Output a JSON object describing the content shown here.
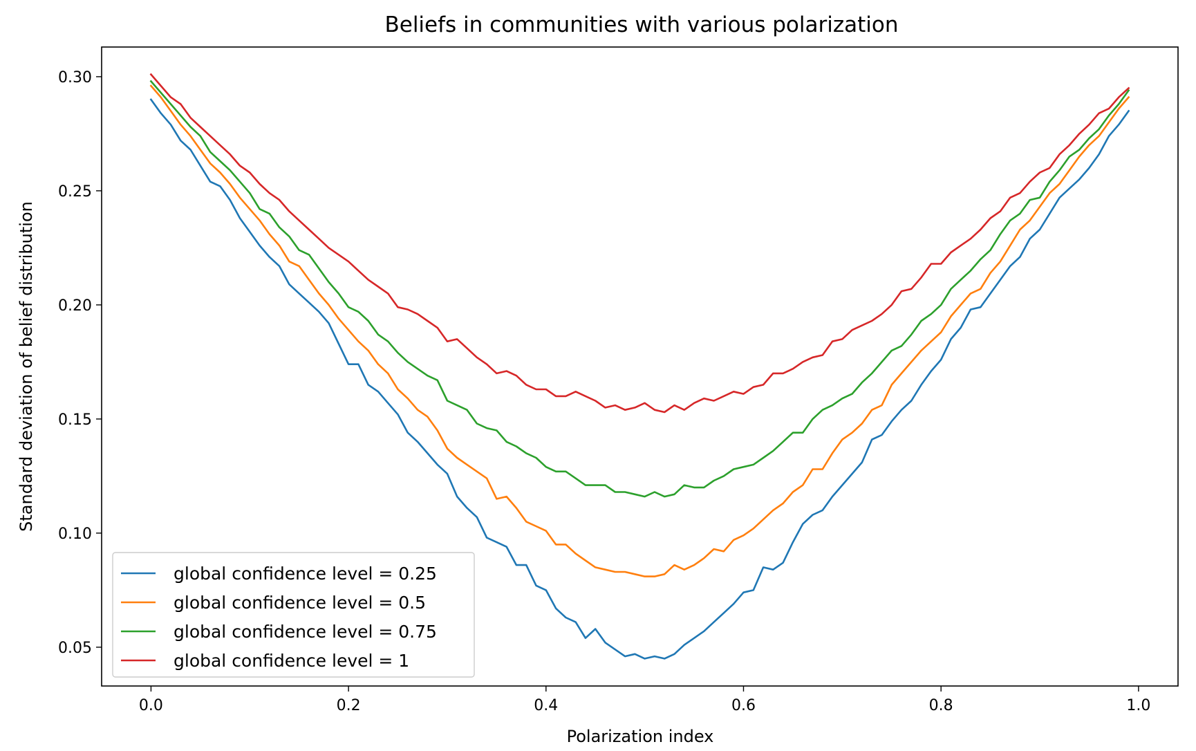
{
  "chart_data": {
    "type": "line",
    "title": "Beliefs in communities with various polarization",
    "xlabel": "Polarization index",
    "ylabel": "Standard deviation of belief distribution",
    "xlim": [
      -0.05,
      1.04
    ],
    "ylim": [
      0.033,
      0.313
    ],
    "xticks": [
      0.0,
      0.2,
      0.4,
      0.6,
      0.8,
      1.0
    ],
    "xtick_labels": [
      "0.0",
      "0.2",
      "0.4",
      "0.6",
      "0.8",
      "1.0"
    ],
    "yticks": [
      0.05,
      0.1,
      0.15,
      0.2,
      0.25,
      0.3
    ],
    "ytick_labels": [
      "0.05",
      "0.10",
      "0.15",
      "0.20",
      "0.25",
      "0.30"
    ],
    "legend_position": "lower-left",
    "x_start": 0.0,
    "x_step": 0.01,
    "series": [
      {
        "name": "global confidence level = 0.25",
        "color": "#1f77b4",
        "values": [
          0.29,
          0.284,
          0.279,
          0.272,
          0.268,
          0.261,
          0.254,
          0.252,
          0.246,
          0.238,
          0.232,
          0.226,
          0.221,
          0.217,
          0.209,
          0.205,
          0.201,
          0.197,
          0.192,
          0.183,
          0.174,
          0.174,
          0.165,
          0.162,
          0.157,
          0.152,
          0.144,
          0.14,
          0.135,
          0.13,
          0.126,
          0.116,
          0.111,
          0.107,
          0.098,
          0.096,
          0.094,
          0.086,
          0.086,
          0.077,
          0.075,
          0.067,
          0.063,
          0.061,
          0.054,
          0.058,
          0.052,
          0.049,
          0.046,
          0.047,
          0.045,
          0.046,
          0.045,
          0.047,
          0.051,
          0.054,
          0.057,
          0.061,
          0.065,
          0.069,
          0.074,
          0.075,
          0.085,
          0.084,
          0.087,
          0.096,
          0.104,
          0.108,
          0.11,
          0.116,
          0.121,
          0.126,
          0.131,
          0.141,
          0.143,
          0.149,
          0.154,
          0.158,
          0.165,
          0.171,
          0.176,
          0.185,
          0.19,
          0.198,
          0.199,
          0.205,
          0.211,
          0.217,
          0.221,
          0.229,
          0.233,
          0.24,
          0.247,
          0.251,
          0.255,
          0.26,
          0.266,
          0.274,
          0.279,
          0.285
        ]
      },
      {
        "name": "global confidence level = 0.5",
        "color": "#ff7f0e",
        "values": [
          0.296,
          0.291,
          0.285,
          0.279,
          0.274,
          0.268,
          0.262,
          0.258,
          0.253,
          0.247,
          0.242,
          0.237,
          0.231,
          0.226,
          0.219,
          0.217,
          0.211,
          0.205,
          0.2,
          0.194,
          0.189,
          0.184,
          0.18,
          0.174,
          0.17,
          0.163,
          0.159,
          0.154,
          0.151,
          0.145,
          0.137,
          0.133,
          0.13,
          0.127,
          0.124,
          0.115,
          0.116,
          0.111,
          0.105,
          0.103,
          0.101,
          0.095,
          0.095,
          0.091,
          0.088,
          0.085,
          0.084,
          0.083,
          0.083,
          0.082,
          0.081,
          0.081,
          0.082,
          0.086,
          0.084,
          0.086,
          0.089,
          0.093,
          0.092,
          0.097,
          0.099,
          0.102,
          0.106,
          0.11,
          0.113,
          0.118,
          0.121,
          0.128,
          0.128,
          0.135,
          0.141,
          0.144,
          0.148,
          0.154,
          0.156,
          0.165,
          0.17,
          0.175,
          0.18,
          0.184,
          0.188,
          0.195,
          0.2,
          0.205,
          0.207,
          0.214,
          0.219,
          0.226,
          0.233,
          0.237,
          0.243,
          0.249,
          0.253,
          0.259,
          0.265,
          0.27,
          0.274,
          0.28,
          0.286,
          0.291
        ]
      },
      {
        "name": "global confidence level = 0.75",
        "color": "#2ca02c",
        "values": [
          0.298,
          0.293,
          0.288,
          0.283,
          0.278,
          0.274,
          0.267,
          0.263,
          0.259,
          0.254,
          0.249,
          0.242,
          0.24,
          0.234,
          0.23,
          0.224,
          0.222,
          0.216,
          0.21,
          0.205,
          0.199,
          0.197,
          0.193,
          0.187,
          0.184,
          0.179,
          0.175,
          0.172,
          0.169,
          0.167,
          0.158,
          0.156,
          0.154,
          0.148,
          0.146,
          0.145,
          0.14,
          0.138,
          0.135,
          0.133,
          0.129,
          0.127,
          0.127,
          0.124,
          0.121,
          0.121,
          0.121,
          0.118,
          0.118,
          0.117,
          0.116,
          0.118,
          0.116,
          0.117,
          0.121,
          0.12,
          0.12,
          0.123,
          0.125,
          0.128,
          0.129,
          0.13,
          0.133,
          0.136,
          0.14,
          0.144,
          0.144,
          0.15,
          0.154,
          0.156,
          0.159,
          0.161,
          0.166,
          0.17,
          0.175,
          0.18,
          0.182,
          0.187,
          0.193,
          0.196,
          0.2,
          0.207,
          0.211,
          0.215,
          0.22,
          0.224,
          0.231,
          0.237,
          0.24,
          0.246,
          0.247,
          0.254,
          0.259,
          0.265,
          0.268,
          0.273,
          0.277,
          0.283,
          0.288,
          0.294
        ]
      },
      {
        "name": "global confidence level = 1",
        "color": "#d62728",
        "values": [
          0.301,
          0.296,
          0.291,
          0.288,
          0.282,
          0.278,
          0.274,
          0.27,
          0.266,
          0.261,
          0.258,
          0.253,
          0.249,
          0.246,
          0.241,
          0.237,
          0.233,
          0.229,
          0.225,
          0.222,
          0.219,
          0.215,
          0.211,
          0.208,
          0.205,
          0.199,
          0.198,
          0.196,
          0.193,
          0.19,
          0.184,
          0.185,
          0.181,
          0.177,
          0.174,
          0.17,
          0.171,
          0.169,
          0.165,
          0.163,
          0.163,
          0.16,
          0.16,
          0.162,
          0.16,
          0.158,
          0.155,
          0.156,
          0.154,
          0.155,
          0.157,
          0.154,
          0.153,
          0.156,
          0.154,
          0.157,
          0.159,
          0.158,
          0.16,
          0.162,
          0.161,
          0.164,
          0.165,
          0.17,
          0.17,
          0.172,
          0.175,
          0.177,
          0.178,
          0.184,
          0.185,
          0.189,
          0.191,
          0.193,
          0.196,
          0.2,
          0.206,
          0.207,
          0.212,
          0.218,
          0.218,
          0.223,
          0.226,
          0.229,
          0.233,
          0.238,
          0.241,
          0.247,
          0.249,
          0.254,
          0.258,
          0.26,
          0.266,
          0.27,
          0.275,
          0.279,
          0.284,
          0.286,
          0.291,
          0.295
        ]
      }
    ]
  }
}
